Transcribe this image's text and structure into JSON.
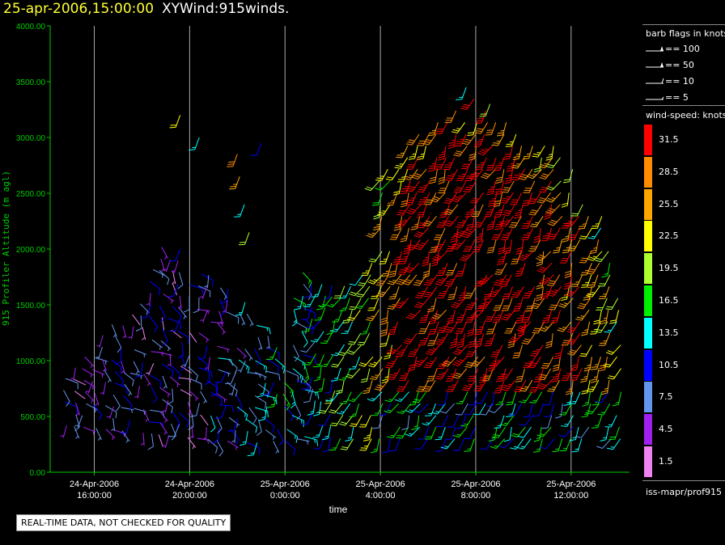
{
  "header": {
    "datetime": "25-apr-2006,15:00:00",
    "title": "XYWind:915winds."
  },
  "colors": {
    "axis": "#00cc00",
    "ticklabel": "#00cc00",
    "grid": "#aaaaaa",
    "text": "#ffffff",
    "barb_palette": [
      "#ee82ee",
      "#a020f0",
      "#6495ed",
      "#0000ff",
      "#00ffff",
      "#00ee00",
      "#adff2f",
      "#ffff00",
      "#ffa500",
      "#ff8c00",
      "#ff0000"
    ]
  },
  "chart_data": {
    "type": "scatter",
    "marker": "wind-barb",
    "xlabel": "time",
    "ylabel": "915 Profiler Altitude (m agl)",
    "ylim": [
      0,
      4000
    ],
    "xlim": [
      14.15,
      38.45
    ],
    "yticks": [
      "0.00",
      "500.00",
      "1000.00",
      "1500.00",
      "2000.00",
      "2500.00",
      "3000.00",
      "3500.00",
      "4000.00"
    ],
    "xticks": [
      {
        "value": 16,
        "line1": "24-Apr-2006",
        "line2": "16:00:00"
      },
      {
        "value": 20,
        "line1": "24-Apr-2006",
        "line2": "20:00:00"
      },
      {
        "value": 24,
        "line1": "25-Apr-2006",
        "line2": "0:00:00"
      },
      {
        "value": 28,
        "line1": "25-Apr-2006",
        "line2": "4:00:00"
      },
      {
        "value": 32,
        "line1": "25-Apr-2006",
        "line2": "8:00:00"
      },
      {
        "value": 36,
        "line1": "25-Apr-2006",
        "line2": "12:00:00"
      }
    ],
    "x_step_hours": 0.4,
    "y_step_m": 105,
    "grid": "vertical",
    "legend_position": "right",
    "coverage_top_m": [
      [
        14.8,
        940
      ],
      [
        16.4,
        1280
      ],
      [
        17.6,
        1420
      ],
      [
        18.8,
        2130
      ],
      [
        20.0,
        2050
      ],
      [
        21.2,
        1720
      ],
      [
        22.4,
        1580
      ],
      [
        23.2,
        1230
      ],
      [
        24.0,
        1100
      ],
      [
        24.6,
        1900
      ],
      [
        25.2,
        1760
      ],
      [
        26.4,
        1700
      ],
      [
        27.4,
        1850
      ],
      [
        28.0,
        2700
      ],
      [
        28.8,
        2780
      ],
      [
        29.4,
        3000
      ],
      [
        30.6,
        3250
      ],
      [
        32.0,
        3350
      ],
      [
        33.6,
        3100
      ],
      [
        35.2,
        2950
      ],
      [
        36.4,
        2600
      ],
      [
        37.2,
        2350
      ],
      [
        37.8,
        1800
      ],
      [
        38.4,
        1150
      ]
    ],
    "coverage_bottom_m": [
      [
        14.8,
        420
      ],
      [
        22.6,
        260
      ],
      [
        23.4,
        280
      ],
      [
        24.0,
        280
      ],
      [
        25.0,
        330
      ],
      [
        26.6,
        300
      ],
      [
        38.4,
        300
      ]
    ],
    "speed_profile_knots": [
      [
        14.8,
        6
      ],
      [
        20.0,
        6
      ],
      [
        21.0,
        8
      ],
      [
        22.4,
        10
      ],
      [
        23.4,
        11
      ],
      [
        24.5,
        12
      ],
      [
        26.0,
        14
      ],
      [
        27.2,
        17
      ],
      [
        28.0,
        23
      ],
      [
        29.2,
        32
      ],
      [
        33.0,
        33
      ],
      [
        35.2,
        30
      ],
      [
        36.6,
        26
      ],
      [
        38.4,
        22
      ]
    ],
    "extra_barbs": [
      {
        "x": 19.6,
        "y": 3200,
        "speed": 21
      },
      {
        "x": 20.4,
        "y": 3000,
        "speed": 13
      },
      {
        "x": 22.0,
        "y": 2850,
        "speed": 28
      },
      {
        "x": 22.1,
        "y": 2650,
        "speed": 24
      },
      {
        "x": 22.3,
        "y": 2400,
        "speed": 14
      },
      {
        "x": 22.5,
        "y": 2150,
        "speed": 19
      },
      {
        "x": 23.0,
        "y": 2950,
        "speed": 10
      },
      {
        "x": 31.6,
        "y": 3450,
        "speed": 14
      },
      {
        "x": 32.6,
        "y": 3300,
        "speed": 20
      }
    ],
    "legend": {
      "barb_title": "barb flags in knots",
      "barbs": [
        {
          "label": "== 100",
          "knots": 100
        },
        {
          "label": "== 50",
          "knots": 50
        },
        {
          "label": "== 10",
          "knots": 10
        },
        {
          "label": "== 5",
          "knots": 5
        }
      ],
      "speed_title": "wind-speed: knots",
      "speed_bins": [
        {
          "label": "31.5",
          "color": "#ff0000"
        },
        {
          "label": "28.5",
          "color": "#ff8c00"
        },
        {
          "label": "25.5",
          "color": "#ffa500"
        },
        {
          "label": "22.5",
          "color": "#ffff00"
        },
        {
          "label": "19.5",
          "color": "#adff2f"
        },
        {
          "label": "16.5",
          "color": "#00ee00"
        },
        {
          "label": "13.5",
          "color": "#00ffff"
        },
        {
          "label": "10.5",
          "color": "#0000ff"
        },
        {
          "label": "7.5",
          "color": "#6495ed"
        },
        {
          "label": "4.5",
          "color": "#a020f0"
        },
        {
          "label": "1.5",
          "color": "#ee82ee"
        }
      ],
      "footer": "iss-mapr/prof915"
    }
  },
  "disclaimer": "REAL-TIME DATA, NOT CHECKED FOR QUALITY"
}
